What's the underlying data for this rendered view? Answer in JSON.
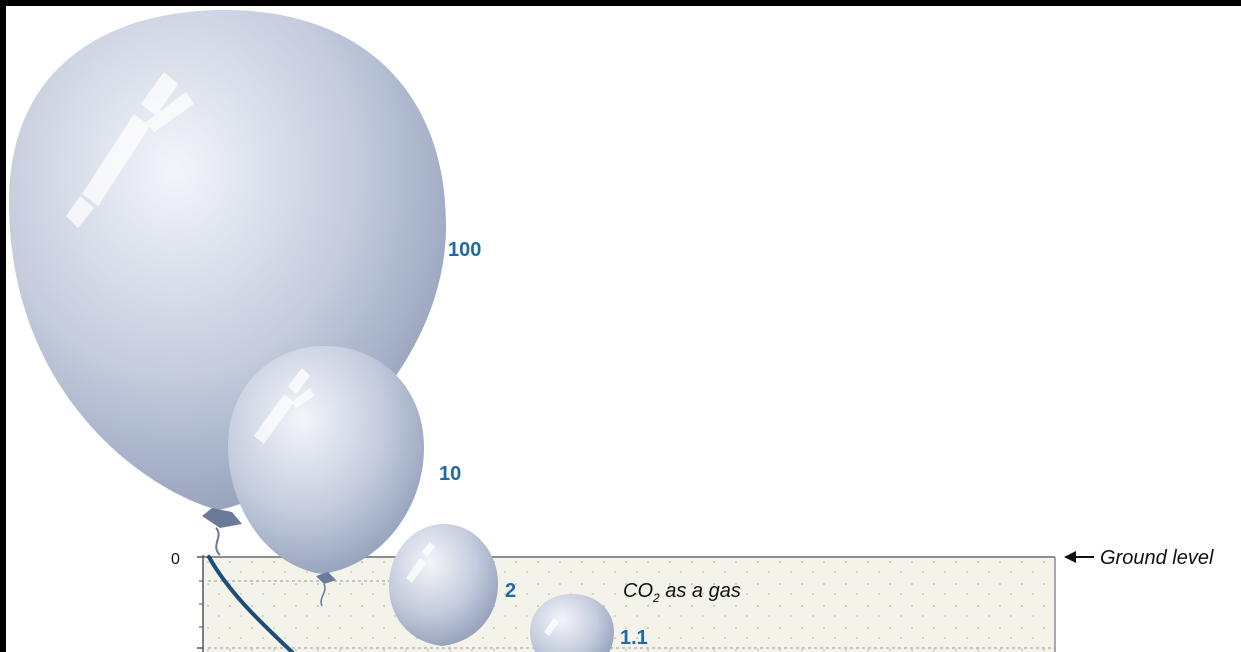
{
  "diagram": {
    "balloons": [
      {
        "id": "balloon-100",
        "label": "100"
      },
      {
        "id": "balloon-10",
        "label": "10"
      },
      {
        "id": "balloon-2",
        "label": "2"
      },
      {
        "id": "balloon-1-1",
        "label": "1.1"
      }
    ],
    "depth_axis": {
      "zero_label": "0"
    },
    "ground": {
      "label": "Ground level"
    },
    "region": {
      "label_main": "CO",
      "label_sub": "2",
      "label_rest": " as a gas"
    },
    "colors": {
      "label_blue": "#1f6aa0",
      "curve_blue": "#1d4e78",
      "balloon_light": "#eef1f7",
      "balloon_dark": "#8f9cb8",
      "ground_fill": "#f4f3ea"
    }
  }
}
